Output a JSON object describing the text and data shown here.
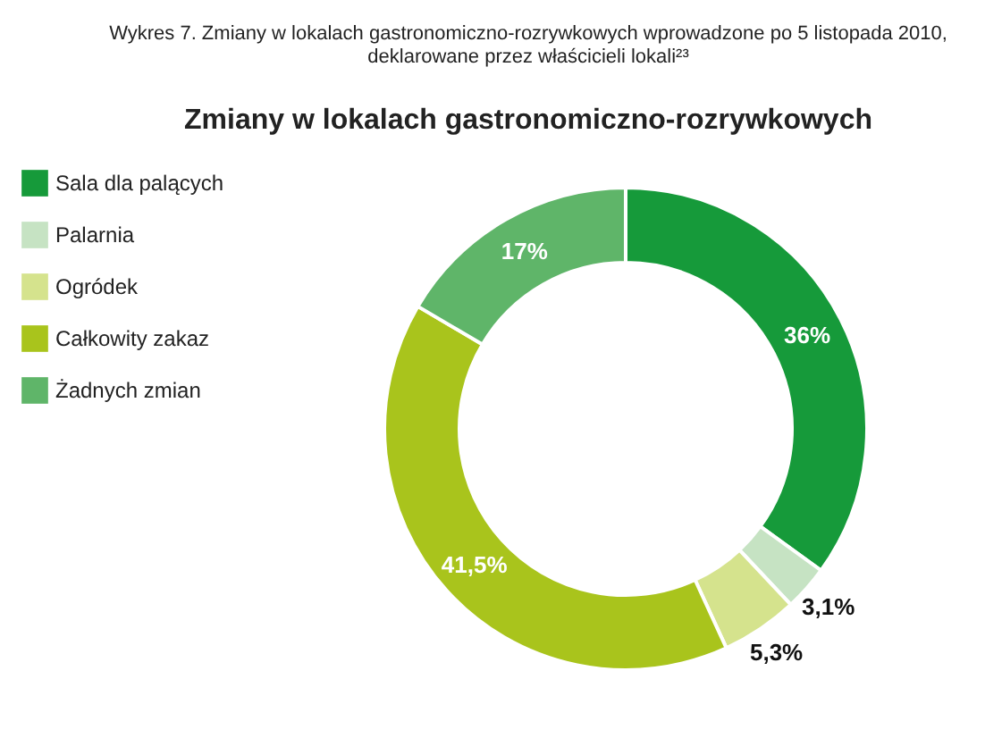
{
  "chart_data": {
    "type": "donut",
    "title": "Wykres 7. Zmiany w lokalach gastronomiczno-rozrywkowych wprowadzone po 5 listopada 2010,\ndeklarowane przez właścicieli lokali²³",
    "subtitle": "Zmiany w lokalach gastronomiczno-rozrywkowych",
    "categories": [
      "Sala dla palących",
      "Palarnia",
      "Ogródek",
      "Całkowity zakaz",
      "Żadnych zmian"
    ],
    "values": [
      36,
      3.1,
      5.3,
      41.5,
      17
    ],
    "value_labels": [
      "36%",
      "3,1%",
      "5,3%",
      "41,5%",
      "17%"
    ],
    "colors": [
      "#169a3a",
      "#c6e3c3",
      "#d5e38d",
      "#a9c41c",
      "#5fb569"
    ],
    "legend": "left"
  }
}
